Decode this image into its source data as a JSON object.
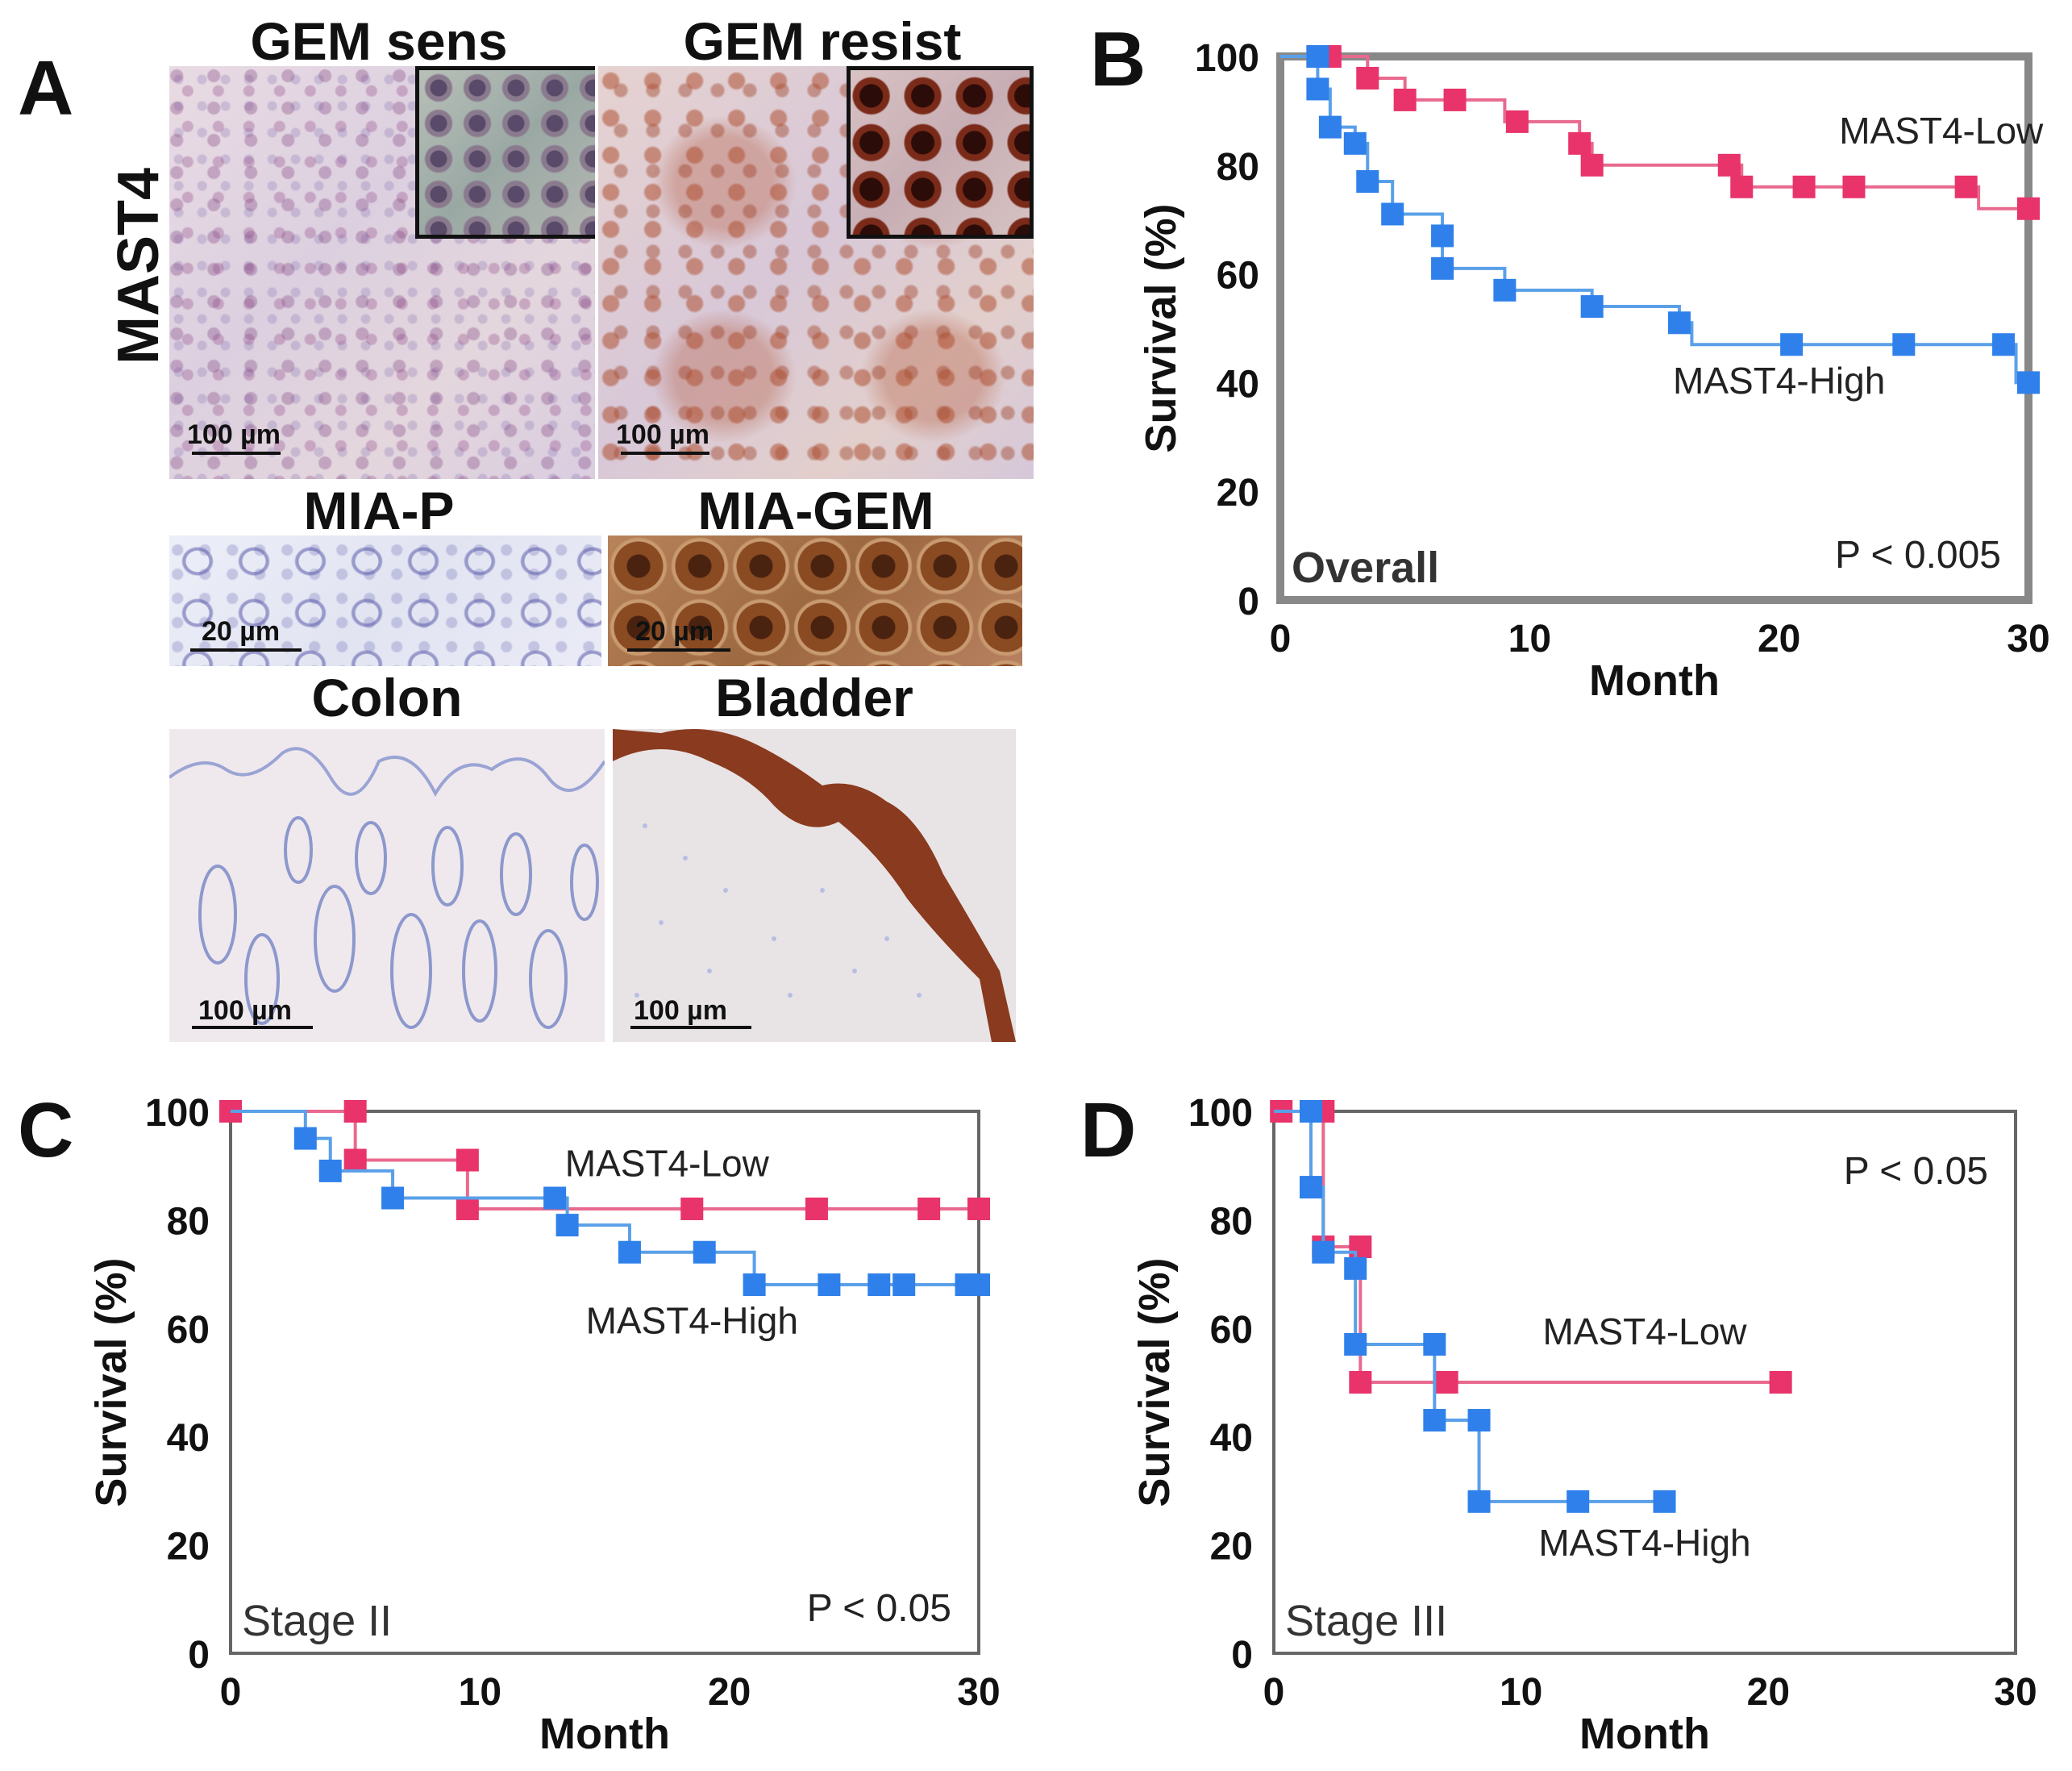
{
  "panels": {
    "A": "A",
    "B": "B",
    "C": "C",
    "D": "D"
  },
  "panel_a": {
    "row_label": "MAST4",
    "images": [
      {
        "title": "GEM sens",
        "scale": "100 µm"
      },
      {
        "title": "GEM resist",
        "scale": "100 µm"
      },
      {
        "title": "MIA-P",
        "scale": "20 µm"
      },
      {
        "title": "MIA-GEM",
        "scale": "20 µm"
      },
      {
        "title": "Colon",
        "scale": "100 µm"
      },
      {
        "title": "Bladder",
        "scale": "100 µm"
      }
    ]
  },
  "colors": {
    "low": "#e8336b",
    "high": "#2f80ea",
    "high_line": "#5aa0e8",
    "low_line": "#e86a8e",
    "frame": "#888888"
  },
  "chart_data": [
    {
      "id": "B",
      "type": "line",
      "title": "Overall",
      "xlabel": "Month",
      "ylabel": "Survival (%)",
      "xlim": [
        0,
        30
      ],
      "ylim": [
        0,
        100
      ],
      "xticks": [
        0,
        10,
        20,
        30
      ],
      "yticks": [
        0,
        20,
        40,
        60,
        80,
        100
      ],
      "pvalue": "P < 0.005",
      "series": [
        {
          "name": "MAST4-Low",
          "color": "#e8336b",
          "steps": [
            [
              0,
              100
            ],
            [
              1.5,
              100
            ],
            [
              2,
              100
            ],
            [
              3.5,
              96
            ],
            [
              5,
              92
            ],
            [
              7,
              92
            ],
            [
              9,
              88
            ],
            [
              12,
              84
            ],
            [
              12.5,
              80
            ],
            [
              18,
              80
            ],
            [
              18.5,
              76
            ],
            [
              21,
              76
            ],
            [
              23,
              76
            ],
            [
              27.5,
              76
            ],
            [
              28,
              72
            ],
            [
              30,
              72
            ]
          ],
          "points": [
            [
              1.5,
              100
            ],
            [
              2,
              100
            ],
            [
              3.5,
              96
            ],
            [
              5,
              92
            ],
            [
              7,
              92
            ],
            [
              9.5,
              88
            ],
            [
              12,
              84
            ],
            [
              12.5,
              80
            ],
            [
              18,
              80
            ],
            [
              18.5,
              76
            ],
            [
              21,
              76
            ],
            [
              23,
              76
            ],
            [
              27.5,
              76
            ],
            [
              30,
              72
            ]
          ]
        },
        {
          "name": "MAST4-High",
          "color": "#2f80ea",
          "steps": [
            [
              0,
              100
            ],
            [
              1.5,
              100
            ],
            [
              1.5,
              94
            ],
            [
              2,
              87
            ],
            [
              3,
              84
            ],
            [
              3.5,
              77
            ],
            [
              4.5,
              71
            ],
            [
              6.5,
              67
            ],
            [
              6.5,
              61
            ],
            [
              9,
              57
            ],
            [
              12.5,
              54
            ],
            [
              16,
              51
            ],
            [
              16.5,
              47
            ],
            [
              20.5,
              47
            ],
            [
              25,
              47
            ],
            [
              29,
              47
            ],
            [
              29.5,
              40
            ],
            [
              30,
              40
            ]
          ],
          "points": [
            [
              1.5,
              100
            ],
            [
              1.5,
              94
            ],
            [
              2,
              87
            ],
            [
              3,
              84
            ],
            [
              3.5,
              77
            ],
            [
              4.5,
              71
            ],
            [
              6.5,
              67
            ],
            [
              6.5,
              61
            ],
            [
              9,
              57
            ],
            [
              12.5,
              54
            ],
            [
              16,
              51
            ],
            [
              20.5,
              47
            ],
            [
              25,
              47
            ],
            [
              29,
              47
            ],
            [
              30,
              40
            ]
          ]
        }
      ],
      "labels": [
        {
          "text": "MAST4-Low",
          "series": "MAST4-Low",
          "at": [
            26.5,
            84
          ]
        },
        {
          "text": "MAST4-High",
          "series": "MAST4-High",
          "at": [
            20,
            38
          ]
        }
      ]
    },
    {
      "id": "C",
      "type": "line",
      "title": "Stage II",
      "xlabel": "Month",
      "ylabel": "Survival (%)",
      "xlim": [
        0,
        30
      ],
      "ylim": [
        0,
        100
      ],
      "xticks": [
        0,
        10,
        20,
        30
      ],
      "yticks": [
        0,
        20,
        40,
        60,
        80,
        100
      ],
      "pvalue": "P < 0.05",
      "series": [
        {
          "name": "MAST4-Low",
          "color": "#e8336b",
          "steps": [
            [
              0,
              100
            ],
            [
              5,
              100
            ],
            [
              5,
              91
            ],
            [
              9.5,
              91
            ],
            [
              9.5,
              82
            ],
            [
              18.5,
              82
            ],
            [
              23.5,
              82
            ],
            [
              28,
              82
            ],
            [
              30,
              82
            ]
          ],
          "points": [
            [
              0,
              100
            ],
            [
              5,
              100
            ],
            [
              5,
              91
            ],
            [
              9.5,
              91
            ],
            [
              9.5,
              82
            ],
            [
              18.5,
              82
            ],
            [
              23.5,
              82
            ],
            [
              28,
              82
            ],
            [
              30,
              82
            ]
          ]
        },
        {
          "name": "MAST4-High",
          "color": "#2f80ea",
          "steps": [
            [
              0,
              100
            ],
            [
              3,
              100
            ],
            [
              3,
              95
            ],
            [
              4,
              89
            ],
            [
              6.5,
              84
            ],
            [
              13,
              84
            ],
            [
              13.5,
              79
            ],
            [
              16,
              74
            ],
            [
              19,
              74
            ],
            [
              21,
              68
            ],
            [
              24,
              68
            ],
            [
              26,
              68
            ],
            [
              27,
              68
            ],
            [
              29.5,
              68
            ],
            [
              30,
              68
            ]
          ],
          "points": [
            [
              3,
              95
            ],
            [
              4,
              89
            ],
            [
              6.5,
              84
            ],
            [
              13,
              84
            ],
            [
              13.5,
              79
            ],
            [
              16,
              74
            ],
            [
              19,
              74
            ],
            [
              21,
              68
            ],
            [
              24,
              68
            ],
            [
              26,
              68
            ],
            [
              27,
              68
            ],
            [
              29.5,
              68
            ],
            [
              30,
              68
            ]
          ]
        }
      ],
      "labels": [
        {
          "text": "MAST4-Low",
          "series": "MAST4-Low",
          "at": [
            17.5,
            88
          ]
        },
        {
          "text": "MAST4-High",
          "series": "MAST4-High",
          "at": [
            18.5,
            59
          ]
        }
      ]
    },
    {
      "id": "D",
      "type": "line",
      "title": "Stage III",
      "xlabel": "Month",
      "ylabel": "Survival (%)",
      "xlim": [
        0,
        30
      ],
      "ylim": [
        0,
        100
      ],
      "xticks": [
        0,
        10,
        20,
        30
      ],
      "yticks": [
        0,
        20,
        40,
        60,
        80,
        100
      ],
      "pvalue": "P < 0.05",
      "series": [
        {
          "name": "MAST4-Low",
          "color": "#e8336b",
          "steps": [
            [
              0,
              100
            ],
            [
              2,
              100
            ],
            [
              2,
              75
            ],
            [
              3.5,
              75
            ],
            [
              3.5,
              50
            ],
            [
              7,
              50
            ],
            [
              20.5,
              50
            ]
          ],
          "points": [
            [
              0.3,
              100
            ],
            [
              2,
              100
            ],
            [
              2,
              75
            ],
            [
              3.5,
              75
            ],
            [
              3.5,
              50
            ],
            [
              7,
              50
            ],
            [
              20.5,
              50
            ]
          ]
        },
        {
          "name": "MAST4-High",
          "color": "#2f80ea",
          "steps": [
            [
              0,
              100
            ],
            [
              1.5,
              100
            ],
            [
              1.5,
              86
            ],
            [
              2,
              74
            ],
            [
              3.3,
              71
            ],
            [
              3.3,
              57
            ],
            [
              6.5,
              57
            ],
            [
              6.5,
              43
            ],
            [
              8.3,
              43
            ],
            [
              8.3,
              28
            ],
            [
              12.3,
              28
            ],
            [
              15.8,
              28
            ]
          ],
          "points": [
            [
              1.5,
              100
            ],
            [
              1.5,
              86
            ],
            [
              2,
              74
            ],
            [
              3.3,
              71
            ],
            [
              3.3,
              57
            ],
            [
              6.5,
              57
            ],
            [
              6.5,
              43
            ],
            [
              8.3,
              43
            ],
            [
              8.3,
              28
            ],
            [
              12.3,
              28
            ],
            [
              15.8,
              28
            ]
          ]
        }
      ],
      "labels": [
        {
          "text": "MAST4-Low",
          "series": "MAST4-Low",
          "at": [
            15,
            57
          ]
        },
        {
          "text": "MAST4-High",
          "series": "MAST4-High",
          "at": [
            15,
            18
          ]
        }
      ]
    }
  ]
}
